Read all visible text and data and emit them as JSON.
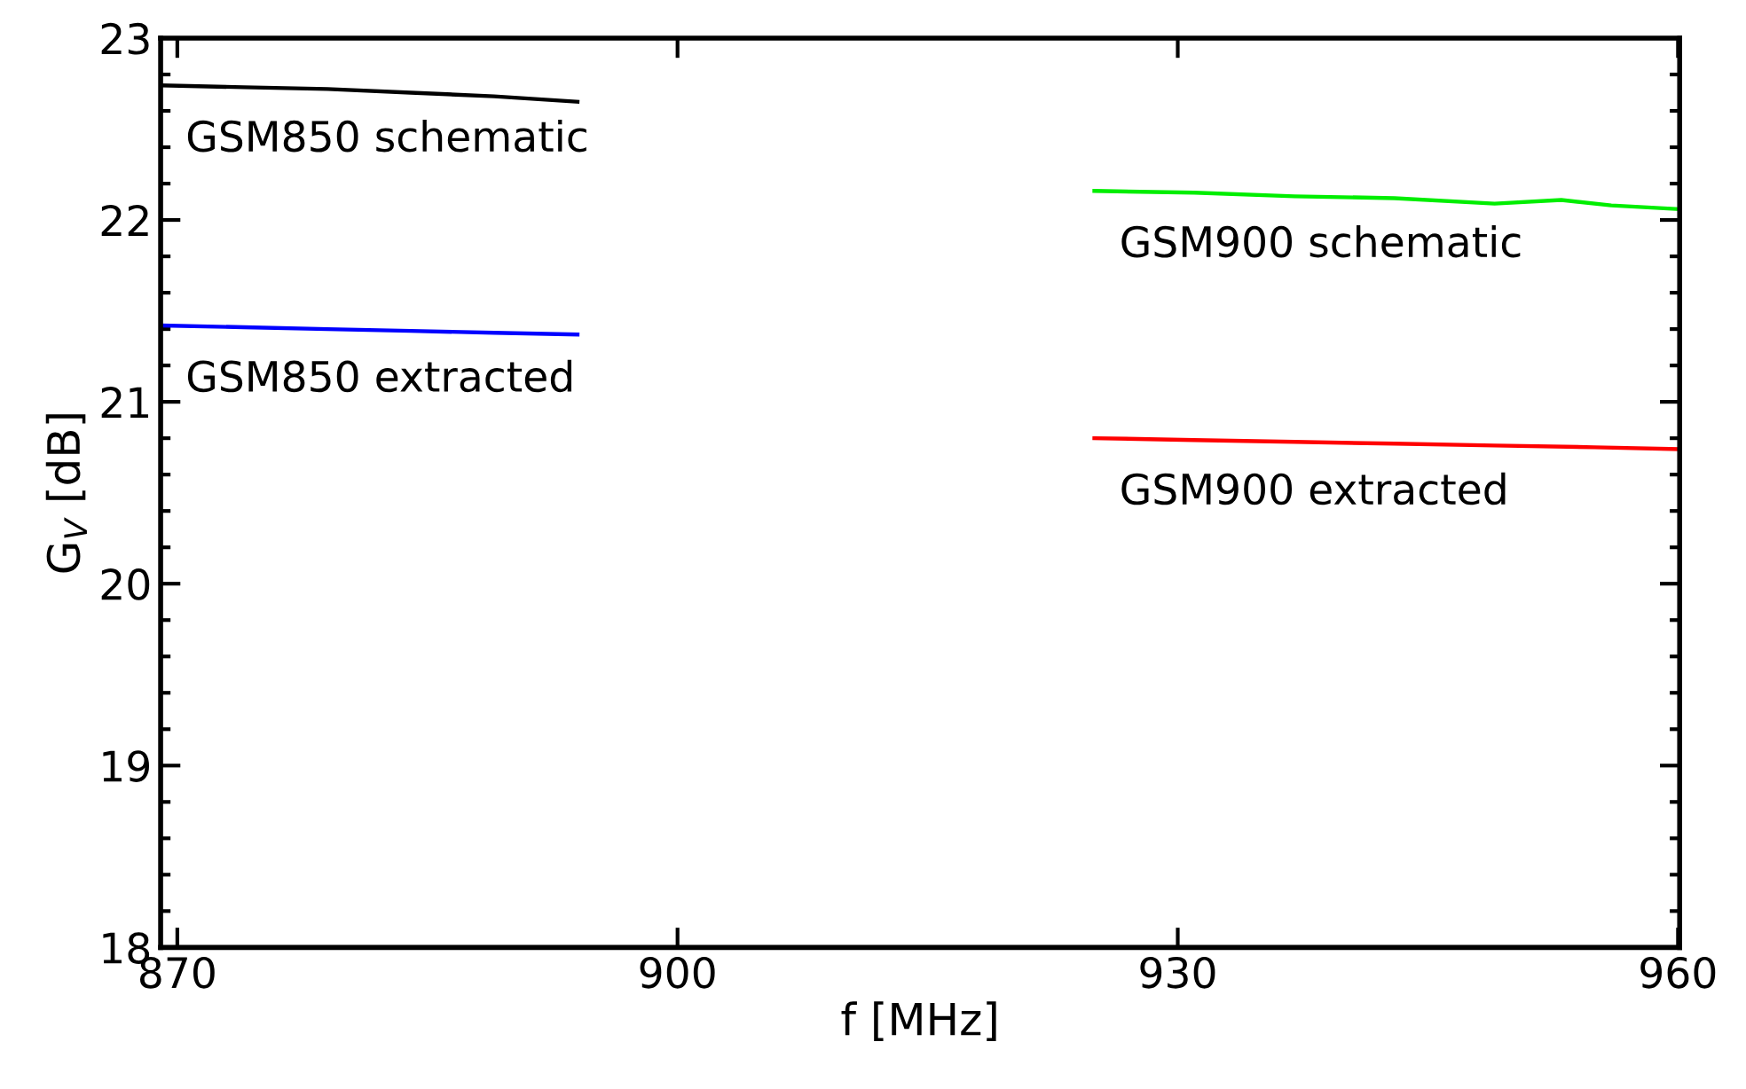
{
  "chart_data": {
    "type": "line",
    "xlabel": "f [MHz]",
    "ylabel": "G$_{V}$ [dB]",
    "xlim": [
      869,
      960.1
    ],
    "xticks": [
      870,
      900,
      930,
      960
    ],
    "ylim": [
      18,
      23
    ],
    "yticks": [
      18,
      {
        "value": 18.2,
        "label": null
      },
      {
        "value": 18.4,
        "label": null
      },
      {
        "value": 18.6,
        "label": null
      },
      {
        "value": 18.8,
        "label": null
      },
      19,
      {
        "value": 19.2,
        "label": null
      },
      {
        "value": 19.4,
        "label": null
      },
      {
        "value": 19.6,
        "label": null
      },
      {
        "value": 19.8,
        "label": null
      },
      20,
      {
        "value": 20.2,
        "label": null
      },
      {
        "value": 20.4,
        "label": null
      },
      {
        "value": 20.6,
        "label": null
      },
      {
        "value": 20.8,
        "label": null
      },
      21,
      {
        "value": 21.2,
        "label": null
      },
      {
        "value": 21.4,
        "label": null
      },
      {
        "value": 21.6,
        "label": null
      },
      {
        "value": 21.8,
        "label": null
      },
      22,
      {
        "value": 22.2,
        "label": null
      },
      {
        "value": 22.4,
        "label": null
      },
      {
        "value": 22.6,
        "label": null
      },
      {
        "value": 22.8,
        "label": null
      },
      23
    ],
    "grid": false,
    "legend": false,
    "marker": "none",
    "line_style": "solid",
    "series": [
      {
        "name": "GSM850 schematic",
        "color": "#000000",
        "x": [
          869,
          874,
          879,
          884,
          889,
          894
        ],
        "values": [
          22.74,
          22.73,
          22.72,
          22.7,
          22.68,
          22.65
        ]
      },
      {
        "name": "GSM850 extracted",
        "color": "#0000ff",
        "x": [
          869,
          874,
          879,
          884,
          889,
          894
        ],
        "values": [
          21.42,
          21.41,
          21.4,
          21.39,
          21.38,
          21.37
        ]
      },
      {
        "name": "GSM900 schematic",
        "color": "#00ee00",
        "x": [
          925,
          931,
          937,
          943,
          949,
          953,
          956,
          960
        ],
        "values": [
          22.16,
          22.15,
          22.13,
          22.12,
          22.09,
          22.11,
          22.08,
          22.06
        ]
      },
      {
        "name": "GSM900 extracted",
        "color": "#ff0000",
        "x": [
          925,
          931,
          937,
          943,
          949,
          955,
          960
        ],
        "values": [
          20.8,
          20.79,
          20.78,
          20.77,
          20.76,
          20.75,
          20.74
        ]
      }
    ]
  }
}
